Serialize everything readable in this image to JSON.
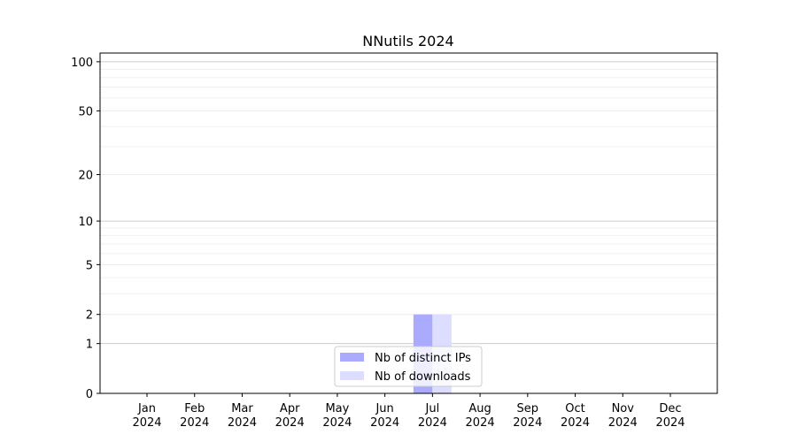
{
  "chart_data": {
    "type": "bar",
    "title": "NNutils 2024",
    "categories": [
      "Jan\n2024",
      "Feb\n2024",
      "Mar\n2024",
      "Apr\n2024",
      "May\n2024",
      "Jun\n2024",
      "Jul\n2024",
      "Aug\n2024",
      "Sep\n2024",
      "Oct\n2024",
      "Nov\n2024",
      "Dec\n2024"
    ],
    "series": [
      {
        "name": "Nb of distinct IPs",
        "color": "#aaaaff",
        "values": [
          0,
          0,
          0,
          0,
          0,
          0,
          2,
          0,
          0,
          0,
          0,
          0
        ]
      },
      {
        "name": "Nb of downloads",
        "color": "#ddddff",
        "values": [
          0,
          0,
          0,
          0,
          0,
          0,
          2,
          0,
          0,
          0,
          0,
          0
        ]
      }
    ],
    "yscale": "log(1+y)",
    "ylim": [
      0,
      113
    ],
    "yticks": [
      0,
      1,
      2,
      5,
      10,
      20,
      50,
      100
    ],
    "grid": true,
    "legend": "lower-center"
  }
}
